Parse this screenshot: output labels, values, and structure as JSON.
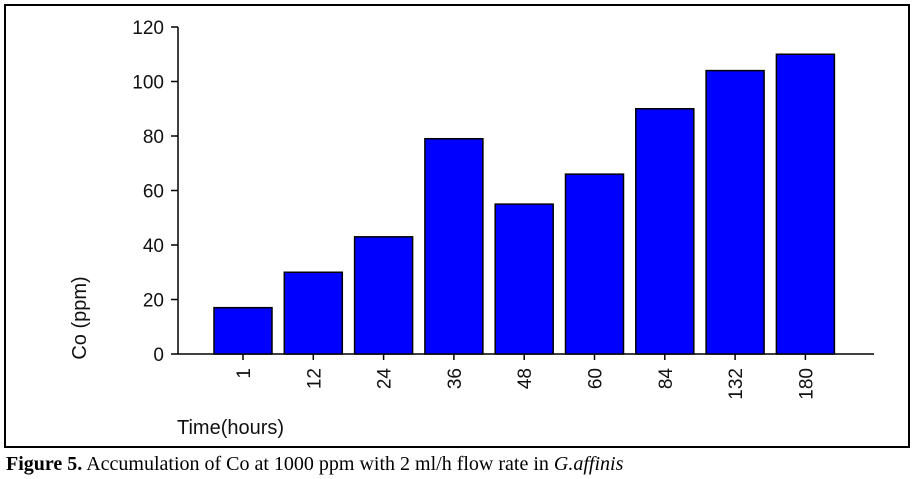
{
  "chart_data": {
    "type": "bar",
    "categories": [
      "1",
      "12",
      "24",
      "36",
      "48",
      "60",
      "84",
      "132",
      "180"
    ],
    "values": [
      17,
      30,
      43,
      79,
      55,
      66,
      90,
      104,
      110
    ],
    "title": "",
    "xlabel": "Time(hours)",
    "ylabel": "Co (ppm)",
    "ylim": [
      0,
      120
    ],
    "yticks": [
      0,
      20,
      40,
      60,
      80,
      100,
      120
    ],
    "grid": false,
    "legend": "none",
    "bar_color": "#0000FF",
    "bar_edge_color": "#000000"
  },
  "caption": {
    "label": "Figure 5.",
    "text": " Accumulation of Co at 1000 ppm with 2 ml/h flow rate in ",
    "species": "G.affinis"
  }
}
